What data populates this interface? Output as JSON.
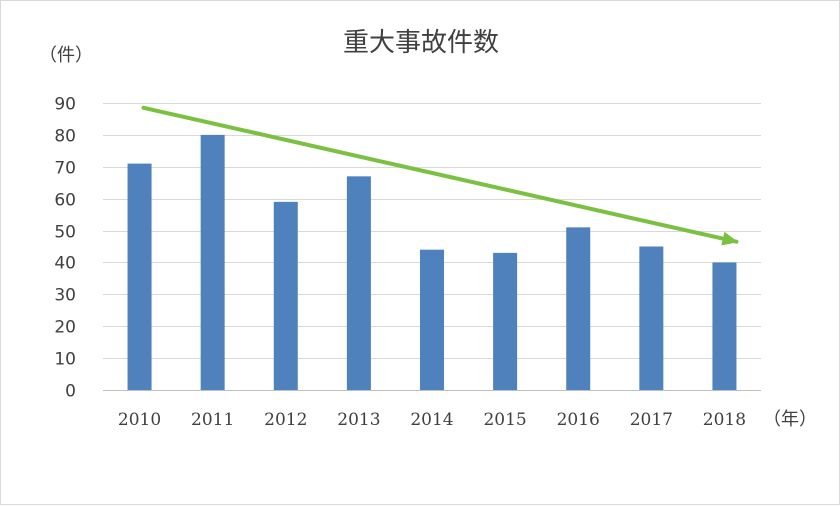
{
  "chart_data": {
    "type": "bar",
    "title": "重大事故件数",
    "ylabel": "（件）",
    "xlabel": "（年）",
    "categories": [
      "2010",
      "2011",
      "2012",
      "2013",
      "2014",
      "2015",
      "2016",
      "2017",
      "2018"
    ],
    "values": [
      71,
      80,
      59,
      67,
      44,
      43,
      51,
      45,
      40
    ],
    "ylim": [
      0,
      90
    ],
    "yticks": [
      0,
      10,
      20,
      30,
      40,
      50,
      60,
      70,
      80,
      90
    ],
    "grid": true,
    "legend": "none",
    "trend_arrow": {
      "from": [
        "2010",
        88.5
      ],
      "to": [
        "2018",
        46.5
      ]
    },
    "colors": {
      "bar": "#4f81bd",
      "trend": "#7ac142",
      "grid": "#d9d9d9",
      "axis": "#bfbfbf",
      "text": "#404040"
    }
  }
}
